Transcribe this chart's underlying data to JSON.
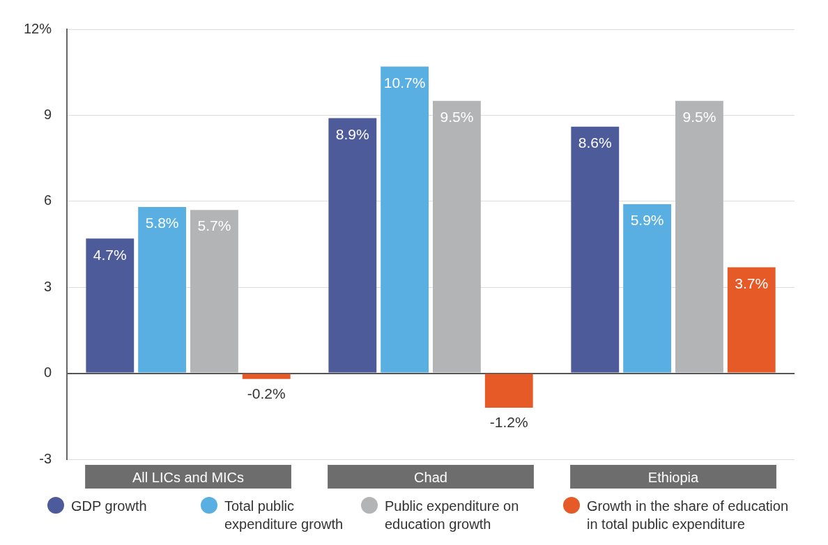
{
  "chart_data": {
    "type": "bar",
    "categories": [
      "All LICs and MICs",
      "Chad",
      "Ethiopia"
    ],
    "series": [
      {
        "name": "GDP growth",
        "color": "#4e5b9b",
        "values": [
          4.7,
          8.9,
          8.6
        ]
      },
      {
        "name": "Total public expenditure growth",
        "color": "#5aafe2",
        "values": [
          5.8,
          10.7,
          5.9
        ]
      },
      {
        "name": "Public expenditure on education growth",
        "color": "#b3b4b6",
        "values": [
          5.7,
          9.5,
          9.5
        ]
      },
      {
        "name": "Growth in the share of education in total public expenditure",
        "color": "#e55a27",
        "values": [
          -0.2,
          -1.2,
          3.7
        ]
      }
    ],
    "value_labels": [
      [
        "4.7%",
        "8.9%",
        "8.6%"
      ],
      [
        "5.8%",
        "10.7%",
        "5.9%"
      ],
      [
        "5.7%",
        "9.5%",
        "9.5%"
      ],
      [
        "-0.2%",
        "-1.2%",
        "3.7%"
      ]
    ],
    "ylim": [
      -3,
      12
    ],
    "yticks": [
      -3,
      0,
      3,
      6,
      9,
      {
        "value": 12,
        "label": "12%"
      }
    ],
    "grid": "y",
    "legend": "bottom"
  }
}
